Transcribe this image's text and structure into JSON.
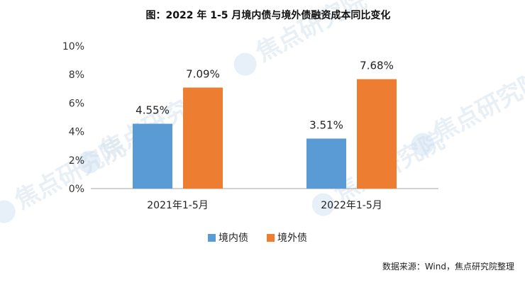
{
  "chart_data": {
    "type": "bar",
    "title": "图：2022 年 1-5 月境内债与境外债融资成本同比变化",
    "categories": [
      "2021年1-5月",
      "2022年1-5月"
    ],
    "series": [
      {
        "name": "境内债",
        "values": [
          4.55,
          3.51
        ],
        "labels": [
          "4.55%",
          "3.51%"
        ],
        "color": "#5b9bd5"
      },
      {
        "name": "境外债",
        "values": [
          7.09,
          7.68
        ],
        "labels": [
          "7.09%",
          "7.68%"
        ],
        "color": "#ed7d31"
      }
    ],
    "ylim": [
      0,
      10
    ],
    "yticks": [
      0,
      2,
      4,
      6,
      8,
      10
    ],
    "ytick_labels": [
      "0%",
      "2%",
      "4%",
      "6%",
      "8%",
      "10%"
    ],
    "grid": false,
    "legend_position": "bottom"
  },
  "source_note": "数据来源：Wind，焦点研究院整理",
  "watermark_text": "焦点研究院"
}
